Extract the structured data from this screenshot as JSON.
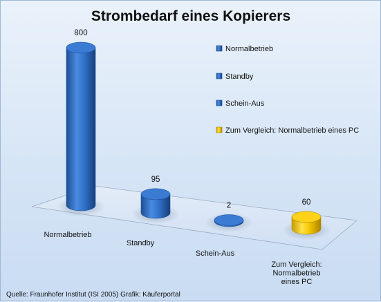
{
  "chart_data": {
    "type": "bar",
    "style": "3d-cylinder",
    "title": "Strombedarf eines Kopierers",
    "categories": [
      "Normalbetrieb",
      "Standby",
      "Schein-Aus",
      "Zum Vergleich: Normalbetrieb eines PC"
    ],
    "category_label_lines": [
      [
        "Normalbetrieb"
      ],
      [
        "Standby"
      ],
      [
        "Schein-Aus"
      ],
      [
        "Zum Vergleich:",
        "Normalbetrieb",
        "eines PC"
      ]
    ],
    "values": [
      800,
      95,
      2,
      60
    ],
    "data_labels": [
      "800",
      "95",
      "2",
      "60"
    ],
    "colors": [
      "#2f6fc4",
      "#2f6fc4",
      "#2f6fc4",
      "#f2c500"
    ],
    "legend": {
      "placement": "right",
      "entries": [
        "Normalbetrieb",
        "Standby",
        "Schein-Aus",
        "Zum Vergleich: Normalbetrieb eines PC"
      ]
    },
    "grid": false,
    "ylim": [
      0,
      800
    ]
  },
  "source": "Quelle: Fraunhofer Institut (ISI 2005) Grafik: Käuferportal"
}
